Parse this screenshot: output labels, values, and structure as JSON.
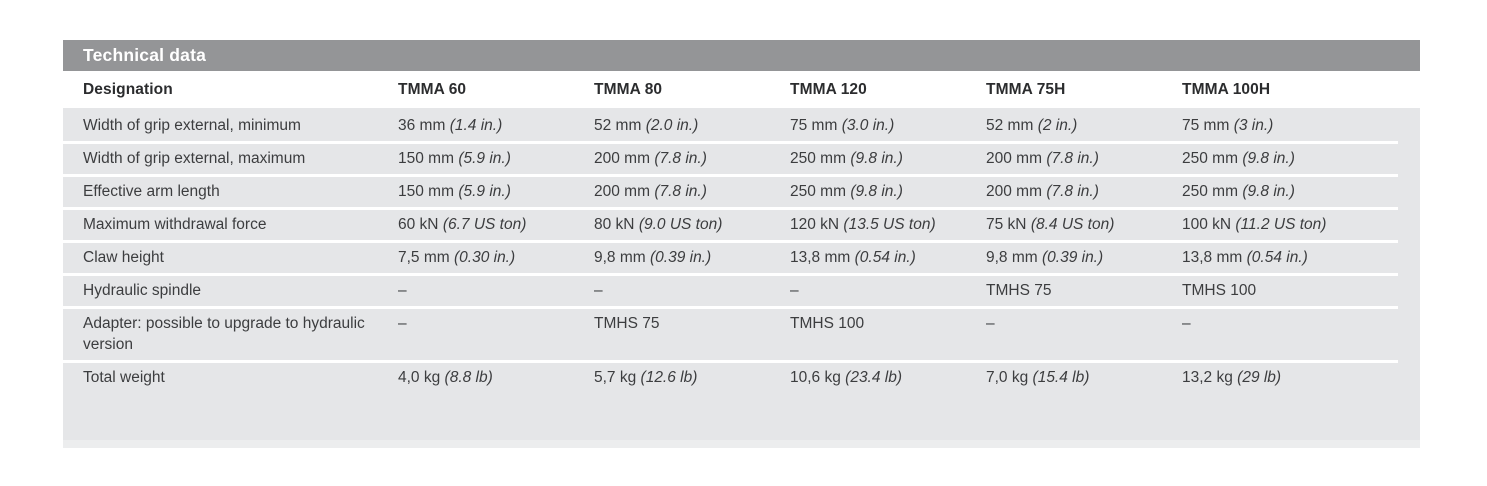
{
  "colors": {
    "title_bar_bg": "#949597",
    "row_bg": "#e5e6e8",
    "separator": "#ffffff",
    "header_text": "#2b2c2e",
    "body_text": "#3c3d3f",
    "title_text": "#ffffff",
    "bottom_edge": "#ecedee",
    "page_bg": "#ffffff"
  },
  "table": {
    "title": "Technical data",
    "columns": [
      "Designation",
      "TMMA 60",
      "TMMA 80",
      "TMMA 120",
      "TMMA 75H",
      "TMMA 100H"
    ],
    "rows": [
      {
        "label": "Width of grip external, minimum",
        "values": [
          "36 mm (1.4 in.)",
          "52 mm (2.0 in.)",
          "75 mm (3.0 in.)",
          "52 mm (2 in.)",
          "75 mm (3 in.)"
        ]
      },
      {
        "label": "Width of grip external, maximum",
        "values": [
          "150 mm (5.9 in.)",
          "200 mm (7.8 in.)",
          "250 mm (9.8 in.)",
          "200 mm (7.8 in.)",
          "250 mm (9.8 in.)"
        ]
      },
      {
        "label": "Effective arm length",
        "values": [
          "150 mm (5.9 in.)",
          "200 mm (7.8 in.)",
          "250 mm (9.8 in.)",
          "200 mm (7.8 in.)",
          "250 mm (9.8 in.)"
        ]
      },
      {
        "label": "Maximum withdrawal force",
        "values": [
          "60 kN (6.7 US ton)",
          "80 kN (9.0 US ton)",
          "120 kN (13.5 US ton)",
          "75 kN (8.4 US ton)",
          "100 kN (11.2 US ton)"
        ]
      },
      {
        "label": "Claw height",
        "values": [
          "7,5 mm (0.30 in.)",
          "9,8 mm (0.39 in.)",
          "13,8 mm (0.54 in.)",
          "9,8 mm (0.39 in.)",
          "13,8 mm (0.54 in.)"
        ]
      },
      {
        "label": "Hydraulic spindle",
        "values": [
          "–",
          "–",
          "–",
          "TMHS 75",
          "TMHS 100"
        ]
      },
      {
        "label": "Adapter: possible to upgrade to hydraulic version",
        "values": [
          "–",
          "TMHS 75",
          "TMHS 100",
          "–",
          "–"
        ]
      },
      {
        "label": "Total weight",
        "values": [
          "4,0 kg (8.8 lb)",
          "5,7 kg (12.6 lb)",
          "10,6 kg (23.4 lb)",
          "7,0 kg (15.4 lb)",
          "13,2 kg (29 lb)"
        ]
      }
    ]
  }
}
